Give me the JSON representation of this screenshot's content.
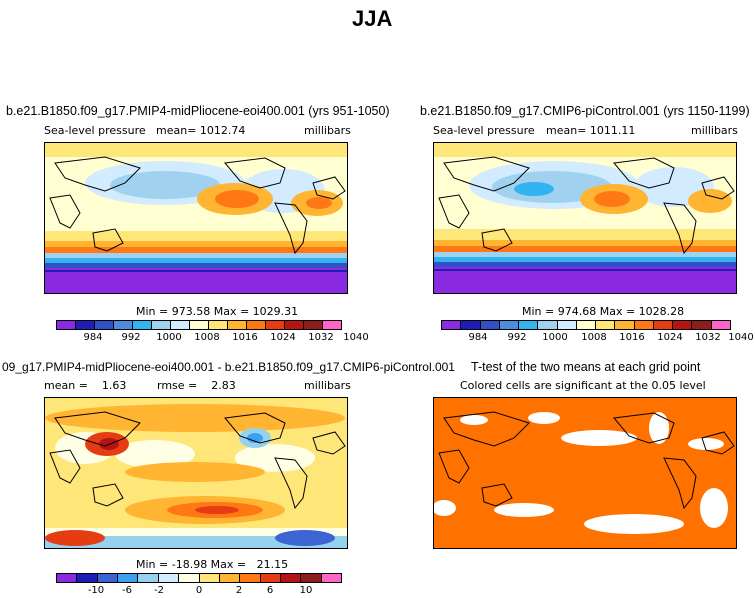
{
  "figure_title": "JJA",
  "panels": {
    "top_left": {
      "title": "b.e21.B1850.f09_g17.PMIP4-midPliocene-eoi400.001 (yrs 951-1050)",
      "variable": "Sea-level pressure",
      "mean": "mean= 1012.74",
      "units": "millibars",
      "minmax": "Min = 973.58 Max = 1029.31",
      "colorbar_labels": [
        "984",
        "992",
        "1000",
        "1008",
        "1016",
        "1024",
        "1032",
        "1040"
      ]
    },
    "top_right": {
      "title": "b.e21.B1850.f09_g17.CMIP6-piControl.001 (yrs 1150-1199)",
      "variable": "Sea-level pressure",
      "mean": "mean= 1011.11",
      "units": "millibars",
      "minmax": "Min = 974.68 Max = 1028.28",
      "colorbar_labels": [
        "984",
        "992",
        "1000",
        "1008",
        "1016",
        "1024",
        "1032",
        "1040"
      ]
    },
    "bottom_left": {
      "title": "09_g17.PMIP4-midPliocene-eoi400.001 - b.e21.B1850.f09_g17.CMIP6-piControl.001",
      "mean": "mean =    1.63",
      "rmse": "rmse =    2.83",
      "units": "millibars",
      "minmax": "Min = -18.98 Max =   21.15",
      "colorbar_labels": [
        "-10",
        "-6",
        "-2",
        "0",
        "2",
        "6",
        "10"
      ]
    },
    "bottom_right": {
      "title": "T-test of the two means at each grid point",
      "subtitle": "Colored cells are significant at the 0.05 level"
    }
  },
  "colors": {
    "slp_scale": [
      "#8a2be2",
      "#1e1eb4",
      "#3250c8",
      "#508cdc",
      "#32b4f0",
      "#a0d2f0",
      "#d2ebff",
      "#ffffd2",
      "#ffe678",
      "#ffb432",
      "#ff7814",
      "#e63c14",
      "#b41414",
      "#8c1e1e",
      "#ff64c8"
    ],
    "diff_scale": [
      "#8a2be2",
      "#1e1eb4",
      "#3c64d2",
      "#3ca0f0",
      "#96d2f0",
      "#d2ebff",
      "#ffffe6",
      "#ffe678",
      "#ffb432",
      "#ff7814",
      "#e63c14",
      "#b41414",
      "#8c1e1e",
      "#ff64c8"
    ],
    "ttest_fill": "#ff7200"
  }
}
